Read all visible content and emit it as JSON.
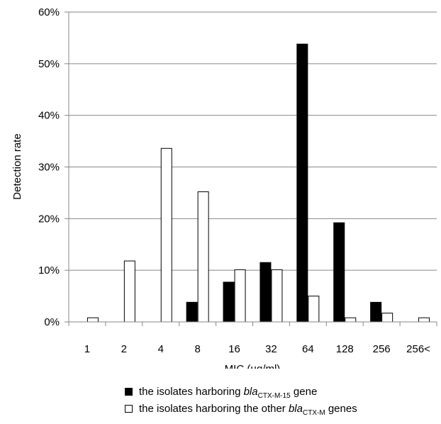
{
  "chart_data": {
    "type": "bar",
    "title": "",
    "xlabel": "MIC (µg/ml)",
    "ylabel": "Detection rate",
    "categories": [
      "1",
      "2",
      "4",
      "8",
      "16",
      "32",
      "64",
      "128",
      "256",
      "256<"
    ],
    "ylim": [
      0,
      60
    ],
    "yticks": [
      "0%",
      "10%",
      "20%",
      "30%",
      "40%",
      "50%",
      "60%"
    ],
    "grid": true,
    "legend_position": "bottom",
    "series": [
      {
        "name": "the isolates harboring blaCTX-M-15 gene",
        "color": "#000000",
        "values": [
          0,
          0,
          0,
          3.8,
          7.7,
          11.5,
          53.8,
          19.2,
          3.8,
          0
        ]
      },
      {
        "name": "the isolates harboring the other blaCTX-M genes",
        "color": "#ffffff",
        "values": [
          0.8,
          11.8,
          33.6,
          25.2,
          10.1,
          10.1,
          5.0,
          0.8,
          1.7,
          0.8
        ]
      }
    ]
  },
  "legend": {
    "item1": {
      "prefix": "the isolates harboring ",
      "gene": "bla",
      "subscript": "CTX-M-15",
      "suffix": " gene"
    },
    "item2": {
      "prefix": "the isolates harboring the other ",
      "gene": "bla",
      "subscript": "CTX-M",
      "suffix": " genes"
    }
  }
}
